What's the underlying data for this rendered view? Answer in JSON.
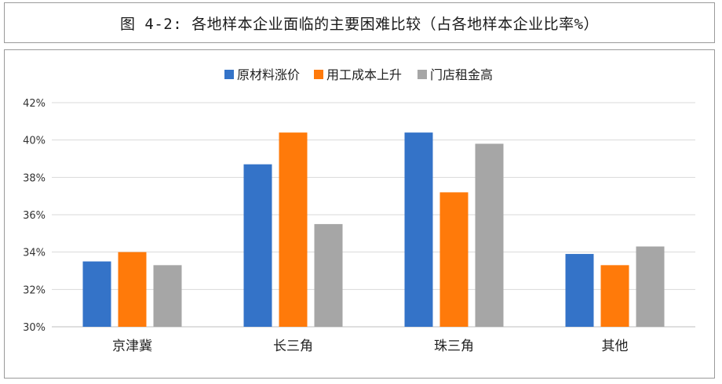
{
  "title": "图 4-2: 各地样本企业面临的主要困难比较（占各地样本企业比率%）",
  "chart_data": {
    "type": "bar",
    "categories": [
      "京津冀",
      "长三角",
      "珠三角",
      "其他"
    ],
    "series": [
      {
        "name": "原材料涨价",
        "values": [
          33.5,
          38.7,
          40.4,
          33.9
        ],
        "color": "#3473c8"
      },
      {
        "name": "用工成本上升",
        "values": [
          34.0,
          40.4,
          37.2,
          33.3
        ],
        "color": "#ff7a0a"
      },
      {
        "name": "门店租金高",
        "values": [
          33.3,
          35.5,
          39.8,
          34.3
        ],
        "color": "#a6a6a6"
      }
    ],
    "yticks": [
      "30%",
      "32%",
      "34%",
      "36%",
      "38%",
      "40%",
      "42%"
    ],
    "ylim": [
      30,
      42
    ],
    "ytick_step": 2,
    "grid": true,
    "legend": "top-center"
  }
}
